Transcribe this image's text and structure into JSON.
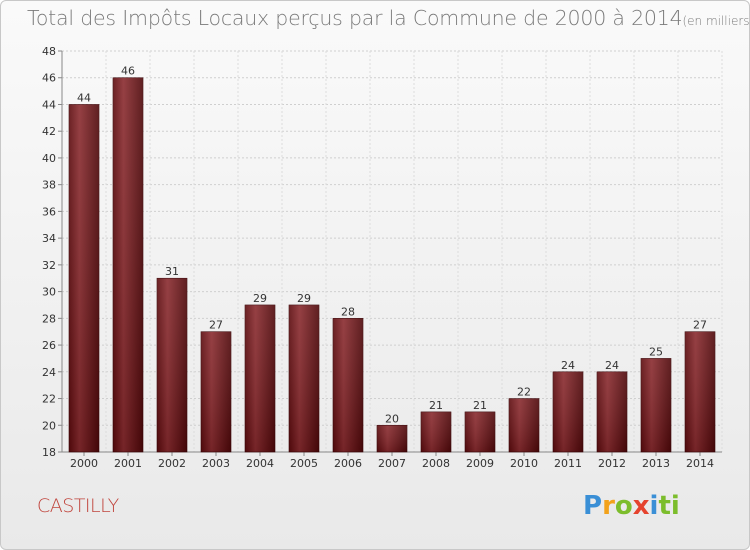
{
  "chart_data": {
    "type": "bar",
    "title": "Total des Impôts Locaux perçus par la Commune de 2000 à 2014",
    "unit_note": "(en milliers d'€)",
    "categories": [
      "2000",
      "2001",
      "2002",
      "2003",
      "2004",
      "2005",
      "2006",
      "2007",
      "2008",
      "2009",
      "2010",
      "2011",
      "2012",
      "2013",
      "2014"
    ],
    "values": [
      44,
      46,
      31,
      27,
      29,
      29,
      28,
      20,
      21,
      21,
      22,
      24,
      24,
      25,
      27
    ],
    "ylim": [
      18,
      48
    ],
    "yticks": [
      18,
      20,
      22,
      24,
      26,
      28,
      30,
      32,
      34,
      36,
      38,
      40,
      42,
      44,
      46,
      48
    ],
    "grid": true,
    "bar_color": "#7a1a1e",
    "xlabel": "",
    "ylabel": ""
  },
  "commune": "CASTILLY",
  "logo": {
    "letters": [
      "P",
      "r",
      "o",
      "x",
      "i",
      "ti"
    ]
  }
}
